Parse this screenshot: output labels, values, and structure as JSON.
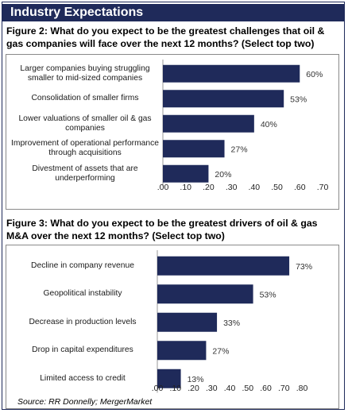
{
  "section_title": "Industry Expectations",
  "source": "Source: RR Donnelly; MergerMarket",
  "colors": {
    "bar": "#1f2a5a",
    "header": "#1f2a5a"
  },
  "chart_data": [
    {
      "type": "bar",
      "orientation": "horizontal",
      "title": "Figure 2: What do you expect to be the greatest challenges that oil & gas companies will face over the next 12 months? (Select top two)",
      "categories": [
        "Larger companies buying struggling smaller to mid-sized companies",
        "Consolidation of smaller firms",
        "Lower valuations of smaller oil & gas companies",
        "Improvement of operational performance through acquisitions",
        "Divestment of assets that are underperforming"
      ],
      "values": [
        0.6,
        0.53,
        0.4,
        0.27,
        0.2
      ],
      "data_labels": [
        "60%",
        "53%",
        "40%",
        "27%",
        "20%"
      ],
      "xlim": [
        0,
        0.7
      ],
      "ticks": [
        ".00",
        ".10",
        ".20",
        ".30",
        ".40",
        ".50",
        ".60",
        ".70"
      ],
      "grid": false,
      "xlabel": "",
      "ylabel": ""
    },
    {
      "type": "bar",
      "orientation": "horizontal",
      "title": "Figure 3: What do you expect to be the greatest drivers of oil & gas M&A over the next 12 months? (Select top two)",
      "categories": [
        "Decline in company revenue",
        "Geopolitical instability",
        "Decrease in production levels",
        "Drop in capital expenditures",
        "Limited access to credit"
      ],
      "values": [
        0.73,
        0.53,
        0.33,
        0.27,
        0.13
      ],
      "data_labels": [
        "73%",
        "53%",
        "33%",
        "27%",
        "13%"
      ],
      "xlim": [
        0,
        0.8
      ],
      "ticks": [
        ".00",
        ".10",
        ".20",
        ".30",
        ".40",
        ".50",
        ".60",
        ".70",
        ".80"
      ],
      "grid": false,
      "xlabel": "",
      "ylabel": ""
    }
  ]
}
